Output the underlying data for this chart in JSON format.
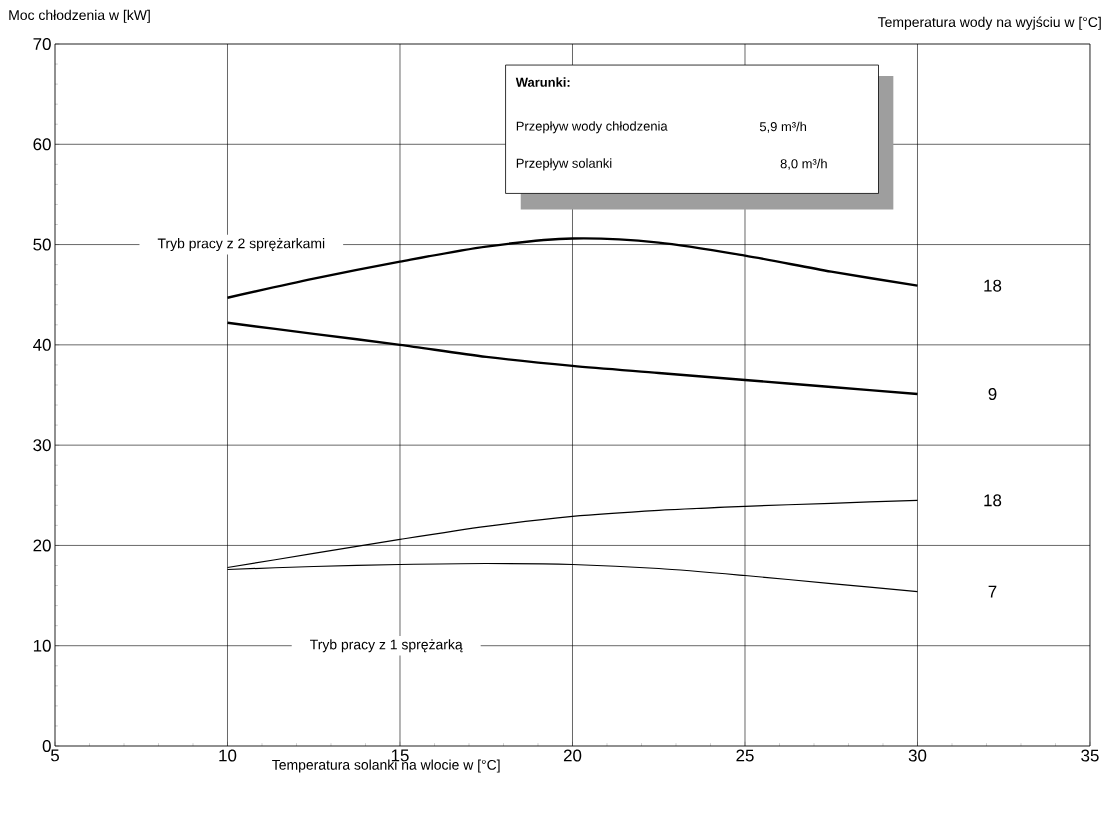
{
  "chart_data": {
    "type": "line",
    "xlabel": "Temperatura solanki na wlocie w [°C]",
    "ylabel": "Moc chłodzenia w [kW]",
    "legend_title": "Temperatura wody na wyjściu w [°C]",
    "x": [
      10,
      12.5,
      15,
      17.5,
      20,
      22.5,
      25,
      27.5,
      30
    ],
    "series": [
      {
        "name": "18",
        "color": "#000000",
        "values": [
          44.7,
          46.6,
          48.3,
          49.8,
          50.6,
          50.2,
          48.9,
          47.3,
          45.9
        ]
      },
      {
        "name": "9",
        "color": "#000000",
        "values": [
          42.2,
          41.1,
          40.0,
          38.8,
          37.9,
          37.2,
          36.5,
          35.8,
          35.1
        ]
      },
      {
        "name": "18",
        "color": "#000000",
        "values": [
          17.8,
          19.2,
          20.6,
          21.9,
          22.9,
          23.5,
          23.9,
          24.2,
          24.5
        ]
      },
      {
        "name": "7",
        "color": "#000000",
        "values": [
          17.6,
          17.9,
          18.1,
          18.2,
          18.1,
          17.7,
          17.0,
          16.2,
          15.4
        ]
      }
    ],
    "annotations": [
      "Tryb pracy z 2 sprężarkami",
      "Tryb pracy z 1 sprężarką",
      "**Warunki:**",
      "Przepływ wody chłodzenia",
      "5,9 m³/h",
      "Przepływ solanki",
      "8,0 m³/h"
    ],
    "xlim": [
      5,
      35
    ],
    "ylim": [
      0,
      70
    ],
    "xticks": [
      5,
      10,
      15,
      20,
      25,
      30,
      35
    ],
    "yticks": [
      0,
      10,
      20,
      30,
      40,
      50,
      60,
      70
    ],
    "grid": true
  }
}
